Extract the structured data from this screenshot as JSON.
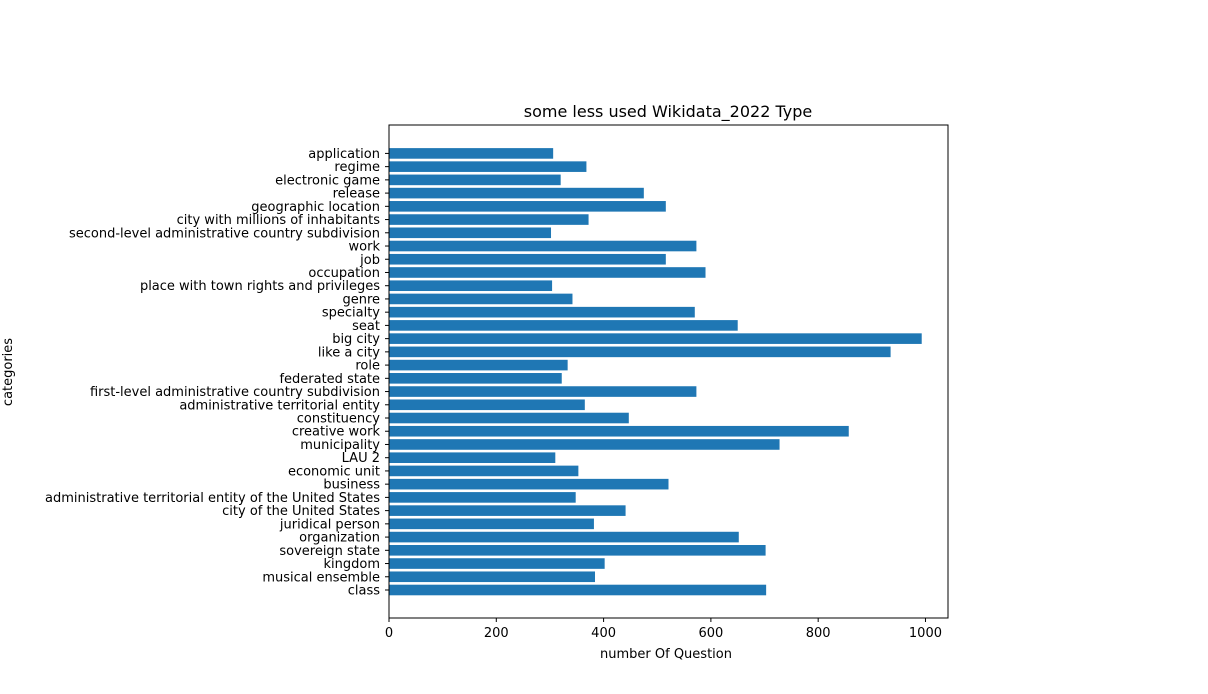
{
  "chart_data": {
    "type": "bar",
    "orientation": "horizontal",
    "title": "some less used  Wikidata_2022 Type",
    "xlabel": "number Of Question",
    "ylabel": "categories",
    "xlim": [
      0,
      1042
    ],
    "xticks": [
      0,
      200,
      400,
      600,
      800,
      1000
    ],
    "grid": false,
    "bar_color": "#1f77b4",
    "categories": [
      "class",
      "musical ensemble",
      "kingdom",
      "sovereign state",
      "organization",
      "juridical person",
      "city of the United States",
      "administrative territorial entity of the United States",
      "business",
      "economic unit",
      "LAU 2",
      "municipality",
      "creative work",
      "constituency",
      "administrative territorial entity",
      "first-level administrative country subdivision",
      "federated state",
      "role",
      "like a city",
      "big city",
      "seat",
      "specialty",
      "genre",
      "place with town rights and privileges",
      "occupation",
      "job",
      "work",
      "second-level administrative country subdivision",
      "city with millions of inhabitants",
      "geographic location",
      "release",
      "electronic game",
      "regime",
      "application"
    ],
    "values": [
      703,
      384,
      402,
      702,
      652,
      382,
      441,
      348,
      521,
      353,
      310,
      728,
      857,
      447,
      365,
      573,
      322,
      333,
      935,
      993,
      650,
      570,
      342,
      304,
      590,
      516,
      573,
      302,
      372,
      516,
      475,
      320,
      368,
      306
    ]
  }
}
